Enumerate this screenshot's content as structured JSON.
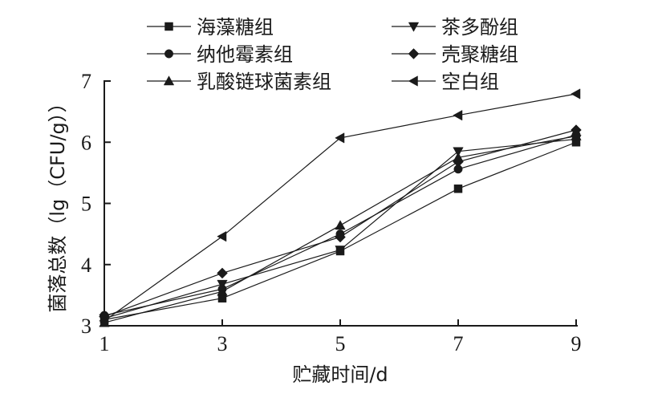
{
  "chart_data": {
    "type": "line",
    "xlabel": "贮藏时间/d",
    "ylabel": "菌落总数（lg（CFU/g））",
    "x": [
      1,
      3,
      5,
      7,
      9
    ],
    "xticks": [
      "1",
      "3",
      "5",
      "7",
      "9"
    ],
    "yticks": [
      "3",
      "4",
      "5",
      "6",
      "7"
    ],
    "xlim": [
      1,
      9
    ],
    "ylim": [
      3,
      7
    ],
    "grid": false,
    "legend_position": "top",
    "series": [
      {
        "name": "海藻糖组",
        "marker": "square",
        "values": [
          3.1,
          3.45,
          4.22,
          5.24,
          6.0
        ]
      },
      {
        "name": "茶多酚组",
        "marker": "triangle-down",
        "values": [
          3.12,
          3.68,
          4.24,
          5.85,
          6.05
        ]
      },
      {
        "name": "纳他霉素组",
        "marker": "circle",
        "values": [
          3.17,
          3.6,
          4.5,
          5.56,
          6.12
        ]
      },
      {
        "name": "壳聚糖组",
        "marker": "diamond",
        "values": [
          3.15,
          3.86,
          4.45,
          5.68,
          6.2
        ]
      },
      {
        "name": "乳酸链球菌素组",
        "marker": "triangle-up",
        "values": [
          3.05,
          3.56,
          4.64,
          5.75,
          6.1
        ]
      },
      {
        "name": "空白组",
        "marker": "triangle-left",
        "values": [
          3.08,
          4.46,
          6.07,
          6.44,
          6.79
        ]
      }
    ]
  }
}
